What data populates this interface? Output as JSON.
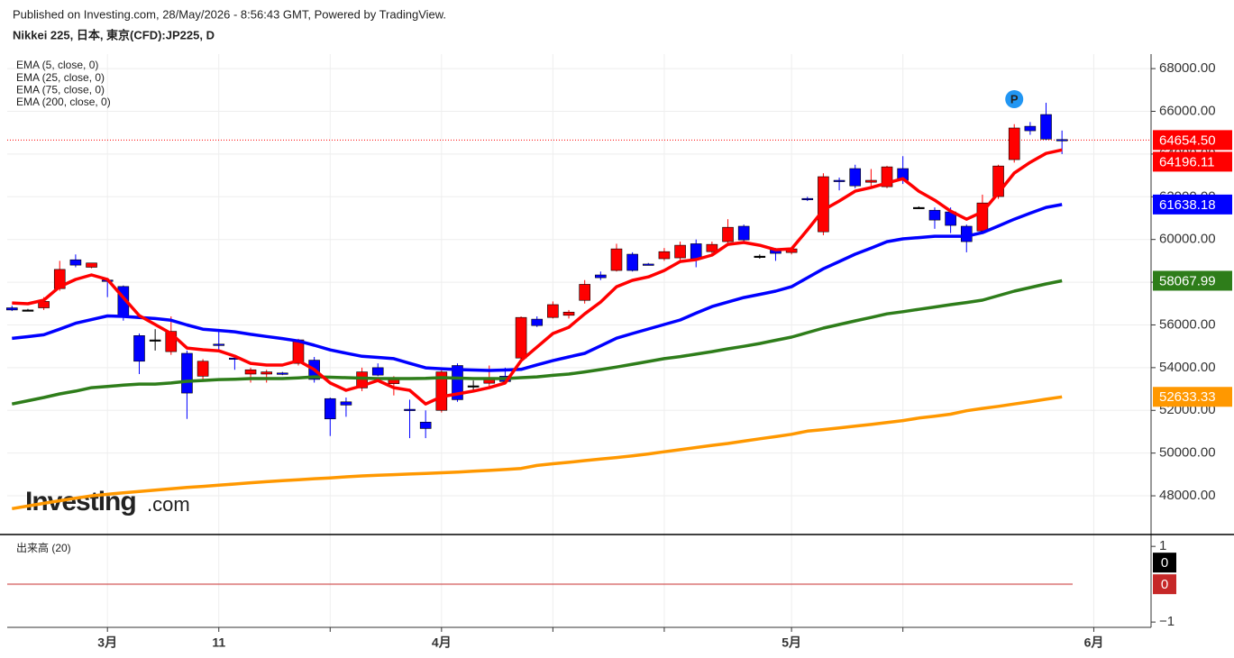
{
  "chart_data": [
    {
      "type": "candlestick",
      "subtitle": "Published on Investing.com, 28/May/2026 - 8:56:43 GMT, Powered by TradingView.",
      "title": "Nikkei 225, 日本, 東京(CFD):JP225, D",
      "up_color": "#ff0000",
      "down_color": "#0000ff",
      "neutral_color": "#000000",
      "open": [
        56800,
        56700,
        56800,
        57700,
        59050,
        58700,
        58100,
        57800,
        55500,
        55300,
        54750,
        54670,
        53600,
        55100,
        54450,
        53700,
        53700,
        53750,
        54200,
        54350,
        52550,
        52400,
        53050,
        54000,
        53250,
        52050,
        51450,
        52000,
        54100,
        53150,
        53270,
        53600,
        54450,
        56270,
        56350,
        56450,
        57150,
        58340,
        58550,
        59310,
        58850,
        59100,
        59140,
        59800,
        59430,
        59900,
        60620,
        59220,
        59520,
        59390,
        61920,
        60360,
        62770,
        63320,
        62680,
        62470,
        63320,
        61500,
        61370,
        61290,
        60620,
        60400,
        62010,
        63740,
        65300,
        65850,
        64680
      ],
      "high": [
        56900,
        56750,
        57300,
        59000,
        59300,
        58900,
        58200,
        57850,
        55600,
        55800,
        56400,
        54800,
        54400,
        55800,
        54600,
        54000,
        53900,
        53800,
        55350,
        54500,
        52600,
        52600,
        54000,
        54200,
        53600,
        52500,
        52000,
        54000,
        54200,
        53400,
        54100,
        54000,
        56400,
        56400,
        57100,
        56700,
        58100,
        58500,
        59800,
        59400,
        58900,
        59600,
        59900,
        60000,
        59900,
        60950,
        60700,
        59300,
        59600,
        59600,
        62000,
        63100,
        62900,
        63500,
        63300,
        63450,
        63900,
        61550,
        61500,
        61500,
        60700,
        62100,
        63500,
        65400,
        65500,
        66400,
        65100
      ],
      "low": [
        56650,
        56650,
        56700,
        57600,
        58700,
        58650,
        57300,
        56200,
        53700,
        54800,
        54600,
        51600,
        53400,
        54800,
        53900,
        53300,
        53300,
        53650,
        54100,
        53300,
        50800,
        51700,
        52900,
        53600,
        52700,
        50700,
        50700,
        51900,
        52400,
        52900,
        53100,
        53300,
        54300,
        55900,
        56300,
        56300,
        57000,
        58100,
        58500,
        58500,
        58800,
        59000,
        59000,
        58700,
        59300,
        59800,
        59800,
        59100,
        59000,
        59300,
        61800,
        60200,
        62300,
        62400,
        62500,
        62400,
        62600,
        61450,
        60500,
        60300,
        59400,
        60300,
        61900,
        63600,
        64900,
        64650,
        64000
      ],
      "close": [
        56700,
        56700,
        57100,
        58600,
        58800,
        58900,
        58050,
        56350,
        54300,
        55300,
        55700,
        52810,
        54300,
        55050,
        54400,
        53900,
        53800,
        53700,
        55300,
        53450,
        51600,
        52250,
        53800,
        53650,
        53450,
        52000,
        51150,
        53800,
        52500,
        53150,
        53500,
        53350,
        56350,
        55970,
        56950,
        56600,
        57900,
        58210,
        59560,
        58550,
        58840,
        59430,
        59730,
        59100,
        59770,
        60570,
        59980,
        59220,
        59350,
        59560,
        61900,
        62940,
        62750,
        62510,
        62770,
        63400,
        62770,
        61500,
        60910,
        60660,
        59900,
        61710,
        63440,
        65220,
        65090,
        64700,
        64654.5
      ],
      "series": [
        {
          "name": "EMA (5, close, 0)",
          "color": "#ff0000",
          "values": [
            57030,
            56990,
            57160,
            57790,
            58130,
            58340,
            58130,
            57280,
            56440,
            56020,
            55600,
            54920,
            54840,
            54790,
            54540,
            54200,
            54120,
            54120,
            54330,
            53910,
            53280,
            52940,
            53150,
            53400,
            53060,
            52940,
            52300,
            52640,
            52770,
            52900,
            53060,
            53280,
            54330,
            54960,
            55600,
            55890,
            56520,
            57070,
            57790,
            58090,
            58250,
            58550,
            58970,
            59060,
            59270,
            59770,
            59860,
            59730,
            59520,
            59560,
            60450,
            61380,
            61800,
            62260,
            62430,
            62640,
            62850,
            62260,
            61840,
            61330,
            60950,
            61290,
            62180,
            63110,
            63610,
            64030,
            64196.11
          ]
        },
        {
          "name": "EMA (25, close, 0)",
          "color": "#0000ff",
          "values": [
            55370,
            55450,
            55540,
            55800,
            56080,
            56250,
            56420,
            56400,
            56350,
            56300,
            56220,
            56000,
            55800,
            55740,
            55680,
            55560,
            55460,
            55360,
            55250,
            55050,
            54830,
            54680,
            54530,
            54480,
            54420,
            54200,
            53990,
            53950,
            53910,
            53890,
            53870,
            53890,
            53920,
            54130,
            54330,
            54500,
            54670,
            55020,
            55380,
            55600,
            55810,
            56020,
            56230,
            56550,
            56860,
            57070,
            57280,
            57430,
            57580,
            57790,
            58210,
            58630,
            58970,
            59310,
            59600,
            59900,
            60030,
            60090,
            60150,
            60150,
            60150,
            60320,
            60630,
            60950,
            61230,
            61500,
            61638.18
          ]
        },
        {
          "name": "EMA (75, close, 0)",
          "color": "#2e7d1a",
          "values": [
            52300,
            52450,
            52600,
            52770,
            52900,
            53060,
            53120,
            53180,
            53230,
            53230,
            53280,
            53360,
            53400,
            53440,
            53460,
            53490,
            53490,
            53490,
            53520,
            53570,
            53550,
            53530,
            53510,
            53490,
            53490,
            53490,
            53500,
            53530,
            53510,
            53490,
            53490,
            53490,
            53530,
            53570,
            53640,
            53700,
            53800,
            53910,
            54030,
            54160,
            54290,
            54420,
            54520,
            54630,
            54750,
            54880,
            55000,
            55130,
            55280,
            55430,
            55640,
            55850,
            56020,
            56190,
            56350,
            56520,
            56620,
            56730,
            56840,
            56950,
            57050,
            57160,
            57370,
            57580,
            57750,
            57920,
            58067.99
          ]
        },
        {
          "name": "EMA (200, close, 0)",
          "color": "#ff9800",
          "values": [
            47400,
            47520,
            47650,
            47770,
            47890,
            48000,
            48070,
            48140,
            48200,
            48270,
            48330,
            48390,
            48440,
            48500,
            48550,
            48610,
            48660,
            48710,
            48750,
            48800,
            48840,
            48890,
            48930,
            48960,
            48990,
            49020,
            49050,
            49080,
            49110,
            49150,
            49190,
            49230,
            49280,
            49420,
            49500,
            49570,
            49650,
            49720,
            49790,
            49870,
            49960,
            50060,
            50160,
            50260,
            50360,
            50450,
            50560,
            50670,
            50770,
            50880,
            51030,
            51100,
            51180,
            51260,
            51340,
            51430,
            51520,
            51640,
            51730,
            51820,
            51980,
            52090,
            52190,
            52300,
            52410,
            52520,
            52633.33
          ]
        }
      ],
      "price_line": {
        "value": 64654.5,
        "label": "64654.50",
        "color": "#ff0000"
      },
      "marker": {
        "label": "P",
        "index": 63,
        "value": 66570,
        "color": "#2196f3"
      },
      "watermark": "Investing",
      "watermark_suffix": ".com",
      "xlim": [
        -0.3,
        71.6
      ],
      "ylim": [
        46230,
        68680
      ],
      "xticks": [
        {
          "value": 6,
          "label": "3月"
        },
        {
          "value": 13,
          "label": "11"
        },
        {
          "value": 27,
          "label": "4月"
        },
        {
          "value": 49,
          "label": "5月"
        },
        {
          "value": 68,
          "label": "6月"
        }
      ],
      "xminor_ticks": [
        20,
        34,
        41,
        56
      ],
      "yticks": [
        {
          "value": 48000,
          "label": "48000.00"
        },
        {
          "value": 50000,
          "label": "50000.00"
        },
        {
          "value": 52000,
          "label": "52000.00"
        },
        {
          "value": 54000,
          "label": "54000.00"
        },
        {
          "value": 56000,
          "label": "56000.00"
        },
        {
          "value": 58000,
          "label": "58000.00"
        },
        {
          "value": 60000,
          "label": "60000.00"
        },
        {
          "value": 62000,
          "label": "62000.00"
        },
        {
          "value": 64000,
          "label": "64000.00"
        },
        {
          "value": 66000,
          "label": "66000.00"
        },
        {
          "value": 68000,
          "label": "68000.00"
        }
      ],
      "grid": true
    },
    {
      "type": "volume",
      "title": "出来高 (20)",
      "volume": 0,
      "volume_ma": 0,
      "volume_color": "#000000",
      "volume_ma_color": "#c62828",
      "ylim": [
        -1.14,
        1.29
      ],
      "yticks": [
        1,
        {
          "value": -1,
          "label": "−1"
        }
      ]
    }
  ]
}
